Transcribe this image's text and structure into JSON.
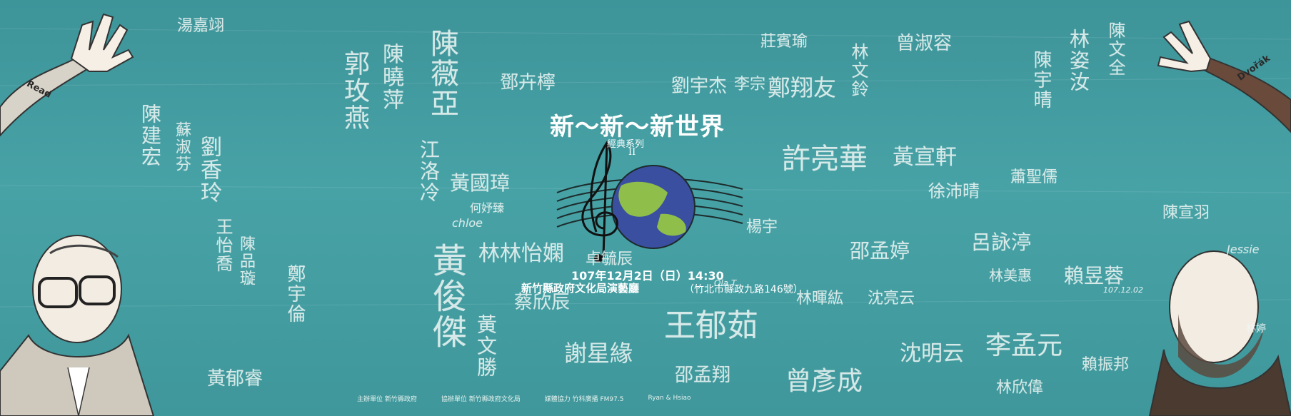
{
  "poster": {
    "title": "新～新～新世界",
    "series": "經典系列",
    "series_number": "II",
    "date_time": "107年12月2日（日）14:30",
    "venue": "新竹縣政府文化局演藝廳",
    "address": "（竹北市縣政九路146號）",
    "left_hand_label": "Read",
    "right_hand_label": "Dvořák",
    "footer_items": [
      "主辦單位 新竹縣政府",
      "協辦單位 新竹縣政府文化局",
      "媒體協力 竹科廣播 FM97.5",
      "Ryan & Hsiao"
    ]
  },
  "signatures": [
    "湯嘉翊",
    "陳薇亞",
    "陳曉萍",
    "郭玫燕",
    "鄧卉檸",
    "劉宇杰",
    "李宗",
    "鄭翔友",
    "莊賓瑜",
    "曾淑容",
    "陳文全",
    "林文鈴",
    "黃國璋",
    "何妤臻",
    "chloe",
    "江洛冷",
    "林林怡嫻",
    "卓毓辰",
    "蔡欣辰",
    "邵孟翔",
    "王郁茹",
    "曾彥成",
    "邵孟婷",
    "許亮華",
    "黃宣軒",
    "徐沛晴",
    "呂詠渟",
    "陳宣羽",
    "Jessie",
    "林美惠",
    "賴昱蓉",
    "107.12.02",
    "李孟元",
    "林暉紘",
    "沈亮云",
    "沈明云",
    "謝星緣",
    "賴振邦",
    "林欣偉",
    "黃俊傑",
    "黃文勝",
    "鄭宇倫",
    "陳品璇",
    "蘇淑芬",
    "黃郁睿",
    "王怡喬",
    "劉香玲",
    "陳建宏",
    "楊宇",
    "蕭聖儒",
    "陳宇晴",
    "林姿汝",
    "林婷",
    "Ola T."
  ]
}
